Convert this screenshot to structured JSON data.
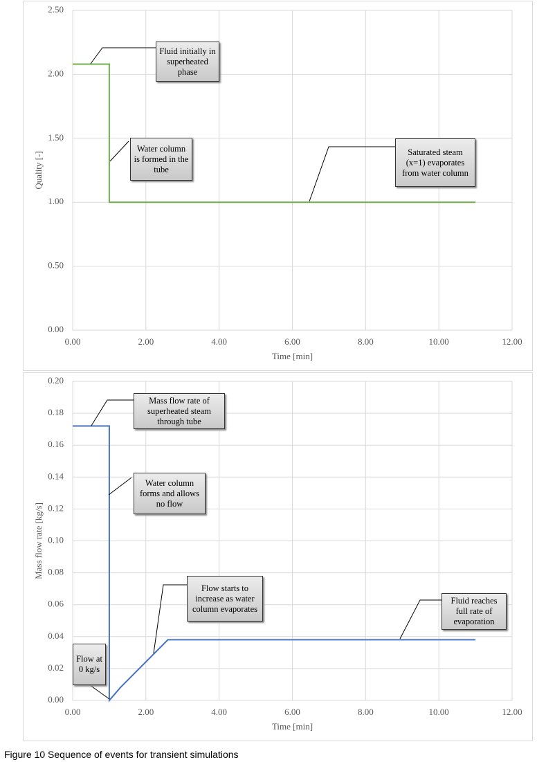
{
  "figure_caption": "Figure 10  Sequence of events for transient simulations",
  "chart_data": [
    {
      "type": "line",
      "x_label": "Time [min]",
      "y_label": "Quality [-]",
      "color": "#70ad47",
      "grid": true,
      "x": [
        0,
        1,
        1,
        11
      ],
      "values": [
        2.08,
        2.08,
        1.0,
        1.0
      ],
      "xlim": [
        0,
        12
      ],
      "ylim": [
        0,
        2.5
      ],
      "xticks": [
        {
          "value": 0,
          "label": "0.00"
        },
        {
          "value": 2,
          "label": "2.00"
        },
        {
          "value": 4,
          "label": "4.00"
        },
        {
          "value": 6,
          "label": "6.00"
        },
        {
          "value": 8,
          "label": "8.00"
        },
        {
          "value": 10,
          "label": "10.00"
        },
        {
          "value": 12,
          "label": "12.00"
        }
      ],
      "yticks": [
        {
          "value": 0,
          "label": "0.00"
        },
        {
          "value": 0.5,
          "label": "0.50"
        },
        {
          "value": 1,
          "label": "1.00"
        },
        {
          "value": 1.5,
          "label": "1.50"
        },
        {
          "value": 2,
          "label": "2.00"
        },
        {
          "value": 2.5,
          "label": "2.50"
        }
      ],
      "annotations": [
        {
          "text": "Fluid initially in superheated phase"
        },
        {
          "text": "Water column is formed in the tube"
        },
        {
          "text": "Saturated steam (x=1) evaporates from water column"
        }
      ]
    },
    {
      "type": "line",
      "x_label": "Time [min]",
      "y_label": "Mass flow rate [kg/s]",
      "color": "#4472c4",
      "grid": true,
      "x": [
        0,
        1,
        1,
        1.3,
        2.6,
        11
      ],
      "values": [
        0.172,
        0.172,
        0,
        0.008,
        0.038,
        0.038
      ],
      "xlim": [
        0,
        12
      ],
      "ylim": [
        0,
        0.2
      ],
      "xticks": [
        {
          "value": 0,
          "label": "0.00"
        },
        {
          "value": 2,
          "label": "2.00"
        },
        {
          "value": 4,
          "label": "4.00"
        },
        {
          "value": 6,
          "label": "6.00"
        },
        {
          "value": 8,
          "label": "8.00"
        },
        {
          "value": 10,
          "label": "10.00"
        },
        {
          "value": 12,
          "label": "12.00"
        }
      ],
      "yticks": [
        {
          "value": 0,
          "label": "0.00"
        },
        {
          "value": 0.02,
          "label": "0.02"
        },
        {
          "value": 0.04,
          "label": "0.04"
        },
        {
          "value": 0.06,
          "label": "0.06"
        },
        {
          "value": 0.08,
          "label": "0.08"
        },
        {
          "value": 0.1,
          "label": "0.10"
        },
        {
          "value": 0.12,
          "label": "0.12"
        },
        {
          "value": 0.14,
          "label": "0.14"
        },
        {
          "value": 0.16,
          "label": "0.16"
        },
        {
          "value": 0.18,
          "label": "0.18"
        },
        {
          "value": 0.2,
          "label": "0.20"
        }
      ],
      "annotations": [
        {
          "text": "Mass flow rate of superheated steam through tube"
        },
        {
          "text": "Water column forms and allows no flow"
        },
        {
          "text": "Flow starts to increase as water column evaporates"
        },
        {
          "text": "Fluid reaches full rate of evaporation"
        },
        {
          "text": "Flow at 0 kg/s"
        }
      ]
    }
  ]
}
